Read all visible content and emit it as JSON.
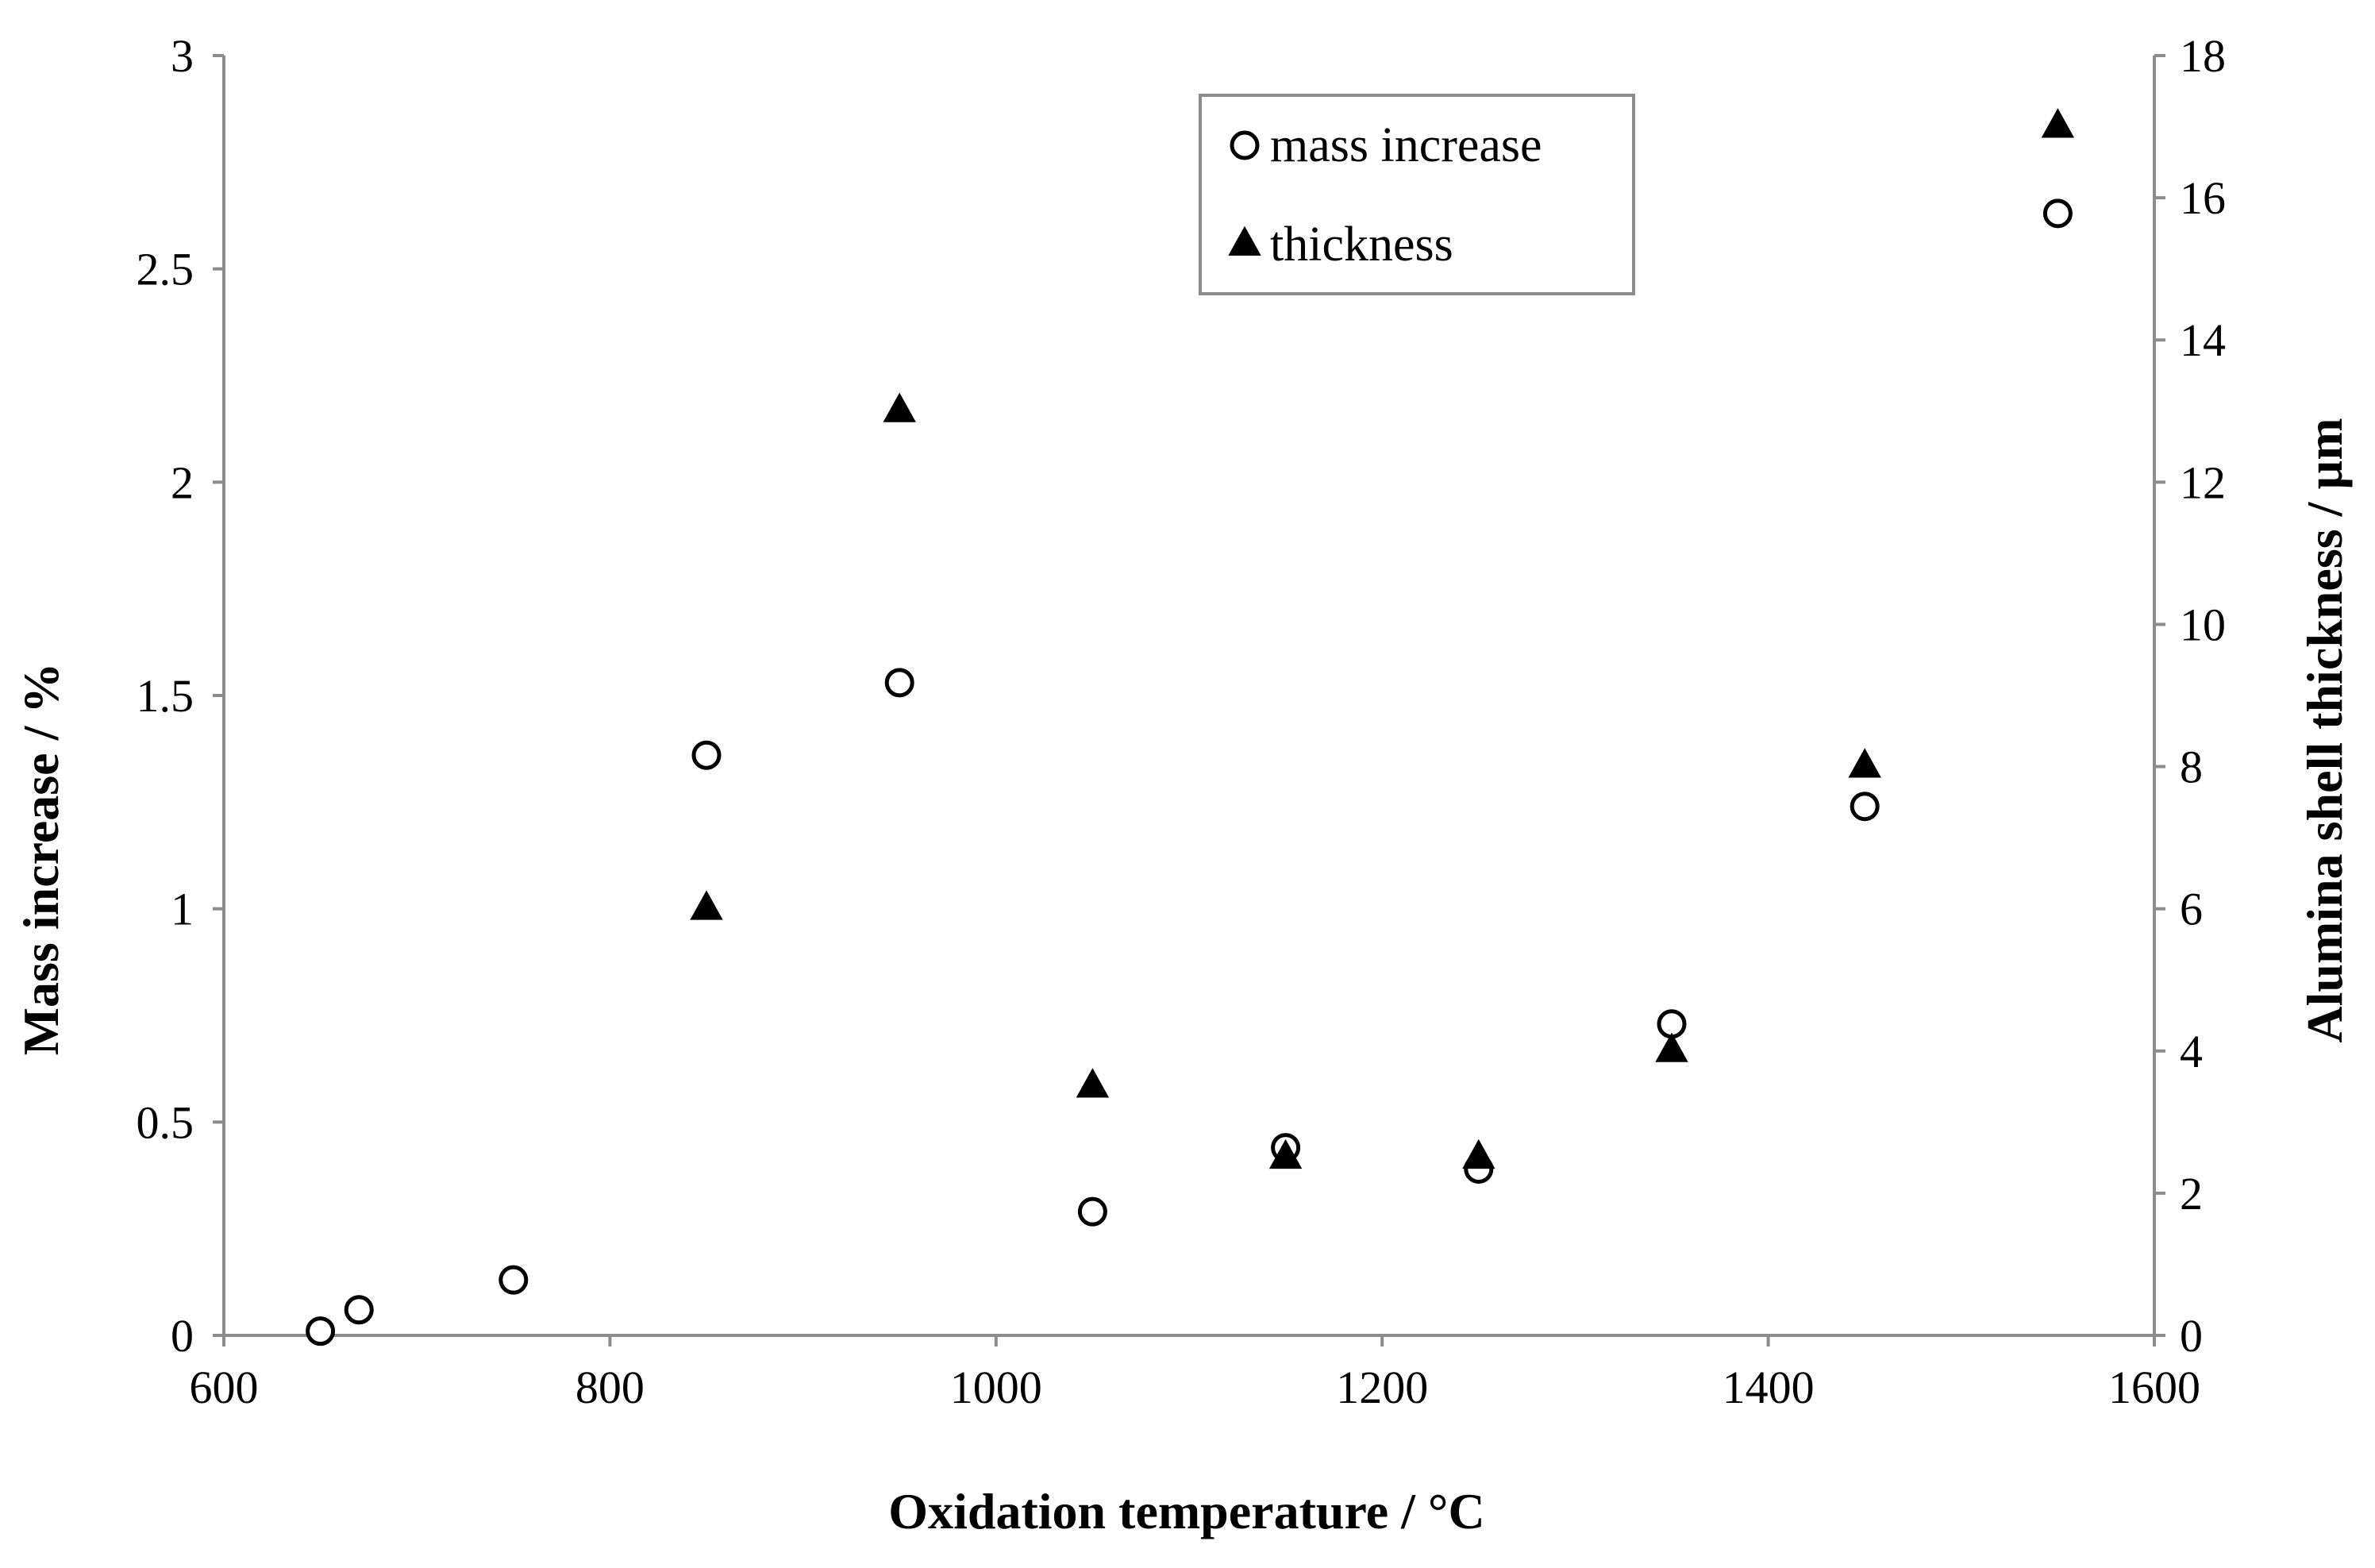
{
  "chart_data": {
    "type": "scatter",
    "title": "",
    "xlabel": "Oxidation temperature / °C",
    "ylabel": "Mass increase / %",
    "y2label": "Alumina shell thickness / µm",
    "xlim": [
      600,
      1600
    ],
    "ylim": [
      0,
      3
    ],
    "y2lim": [
      0,
      18
    ],
    "xticks": [
      600,
      800,
      1000,
      1200,
      1400,
      1600
    ],
    "xtick_labels": [
      "600",
      "800",
      "1000",
      "1200",
      "1400",
      "1600"
    ],
    "yticks": [
      0,
      0.5,
      1,
      1.5,
      2,
      2.5,
      3
    ],
    "ytick_labels": [
      "0",
      "0.5",
      "1",
      "1.5",
      "2",
      "2.5",
      "3"
    ],
    "y2ticks": [
      0,
      2,
      4,
      6,
      8,
      10,
      12,
      14,
      16,
      18
    ],
    "y2tick_labels": [
      "0",
      "2",
      "4",
      "6",
      "8",
      "10",
      "12",
      "14",
      "16",
      "18"
    ],
    "grid": false,
    "legend_position": "top-center-right",
    "series": [
      {
        "name": "mass increase",
        "axis": "left",
        "marker": "open-circle",
        "x": [
          650,
          670,
          750,
          850,
          950,
          1050,
          1150,
          1250,
          1350,
          1450,
          1550
        ],
        "y": [
          0.01,
          0.06,
          0.13,
          1.36,
          1.53,
          0.29,
          0.44,
          0.39,
          0.73,
          1.24,
          2.63
        ]
      },
      {
        "name": "thickness",
        "axis": "right",
        "marker": "filled-triangle",
        "x": [
          850,
          950,
          1050,
          1150,
          1250,
          1350,
          1450,
          1550
        ],
        "y": [
          6.0,
          13.0,
          3.5,
          2.5,
          2.5,
          4.0,
          8.0,
          17.0
        ]
      }
    ]
  }
}
